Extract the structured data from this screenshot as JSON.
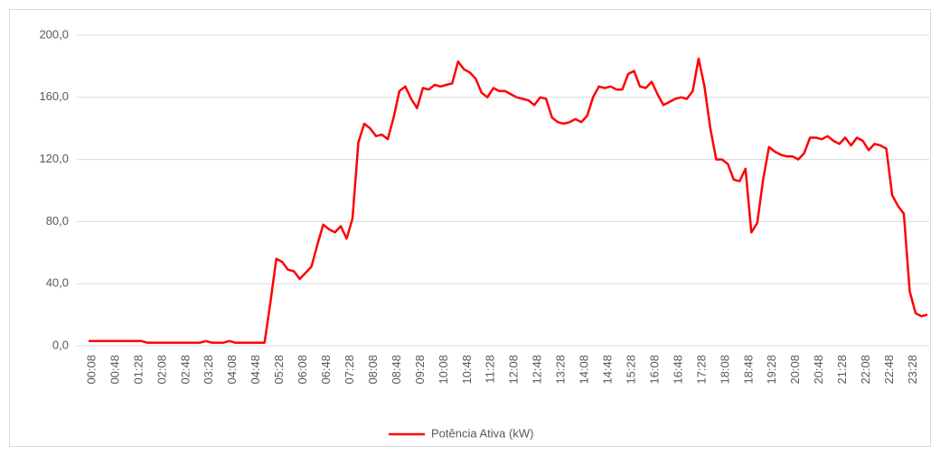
{
  "chart_data": {
    "type": "line",
    "categories": [
      "00:08",
      null,
      null,
      null,
      "00:48",
      null,
      null,
      null,
      "01:28",
      null,
      null,
      null,
      "02:08",
      null,
      null,
      null,
      "02:48",
      null,
      null,
      null,
      "03:28",
      null,
      null,
      null,
      "04:08",
      null,
      null,
      null,
      "04:48",
      null,
      null,
      null,
      "05:28",
      null,
      null,
      null,
      "06:08",
      null,
      null,
      null,
      "06:48",
      null,
      null,
      null,
      "07:28",
      null,
      null,
      null,
      "08:08",
      null,
      null,
      null,
      "08:48",
      null,
      null,
      null,
      "09:28",
      null,
      null,
      null,
      "10:08",
      null,
      null,
      null,
      "10:48",
      null,
      null,
      null,
      "11:28",
      null,
      null,
      null,
      "12:08",
      null,
      null,
      null,
      "12:48",
      null,
      null,
      null,
      "13:28",
      null,
      null,
      null,
      "14:08",
      null,
      null,
      null,
      "14:48",
      null,
      null,
      null,
      "15:28",
      null,
      null,
      null,
      "16:08",
      null,
      null,
      null,
      "16:48",
      null,
      null,
      null,
      "17:28",
      null,
      null,
      null,
      "18:08",
      null,
      null,
      null,
      "18:48",
      null,
      null,
      null,
      "19:28",
      null,
      null,
      null,
      "20:08",
      null,
      null,
      null,
      "20:48",
      null,
      null,
      null,
      "21:28",
      null,
      null,
      null,
      "22:08",
      null,
      null,
      null,
      "22:48",
      null,
      null,
      null,
      "23:28",
      null,
      null,
      null
    ],
    "series": [
      {
        "name": "Potência Ativa (kW)",
        "color": "#ff0000",
        "values": [
          3,
          3,
          3,
          3,
          3,
          3,
          3,
          3,
          3,
          3,
          2,
          2,
          2,
          2,
          2,
          2,
          2,
          2,
          2,
          2,
          3,
          2,
          2,
          2,
          3,
          2,
          2,
          2,
          2,
          2,
          2,
          28,
          56,
          54,
          49,
          48,
          43,
          47,
          51,
          65,
          78,
          75,
          73,
          77,
          69,
          82,
          131,
          143,
          140,
          135,
          136,
          133,
          147,
          164,
          167,
          159,
          153,
          166,
          165,
          168,
          167,
          168,
          169,
          183,
          178,
          176,
          172,
          163,
          160,
          166,
          164,
          164,
          162,
          160,
          159,
          158,
          155,
          160,
          159,
          147,
          144,
          143,
          144,
          146,
          144,
          148,
          160,
          167,
          166,
          167,
          165,
          165,
          175,
          177,
          167,
          166,
          170,
          162,
          155,
          157,
          159,
          160,
          159,
          164,
          185,
          167,
          140,
          120,
          120,
          117,
          107,
          106,
          114,
          73,
          79,
          107,
          128,
          125,
          123,
          122,
          122,
          120,
          124,
          134,
          134,
          133,
          135,
          132,
          130,
          134,
          129,
          134,
          132,
          126,
          130,
          129,
          127,
          97,
          90,
          85,
          35,
          21,
          19,
          20
        ]
      }
    ],
    "ylim": [
      0,
      200
    ],
    "yticks": [
      {
        "value": 0,
        "label": "0,0"
      },
      {
        "value": 40,
        "label": "40,0"
      },
      {
        "value": 80,
        "label": "80,0"
      },
      {
        "value": 120,
        "label": "120,0"
      },
      {
        "value": 160,
        "label": "160,0"
      },
      {
        "value": 200,
        "label": "200,0"
      }
    ],
    "grid": true,
    "legend": "bottom"
  }
}
